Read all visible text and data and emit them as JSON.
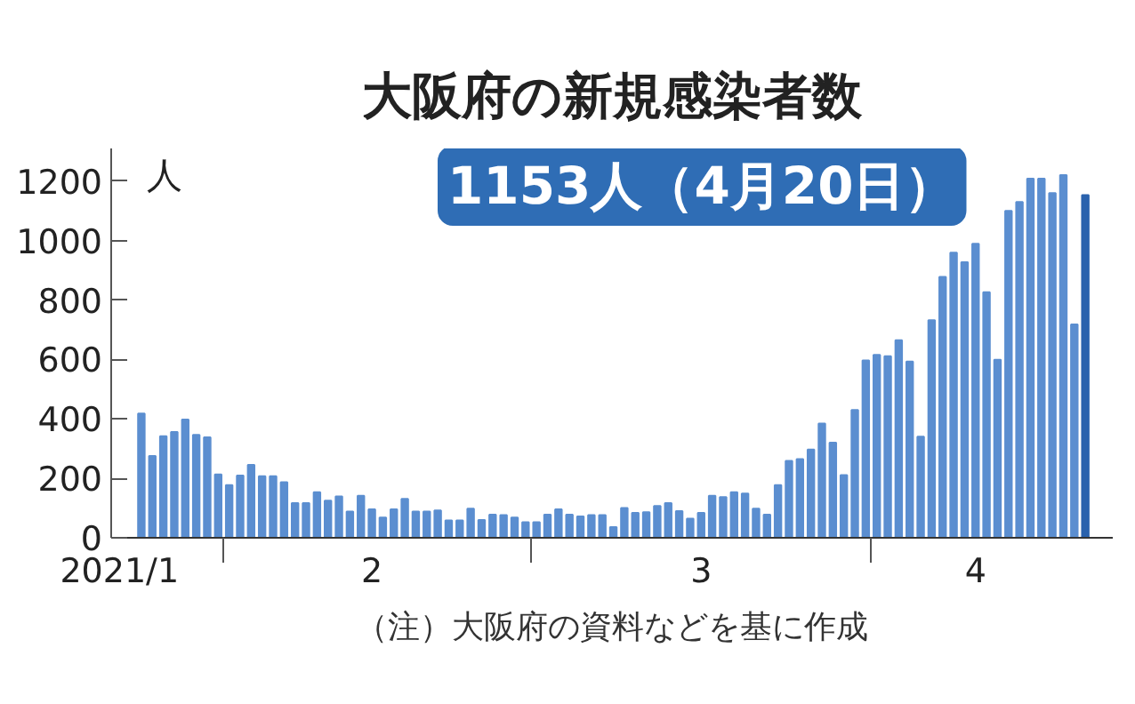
{
  "chart_data": {
    "type": "bar",
    "title": "大阪府の新規感染者数",
    "ylabel": "人",
    "annotations": [
      "1153人（4月20日）",
      "（注）大阪府の資料などを基に作成"
    ],
    "x": [
      "2021-01-24",
      "2021-01-25",
      "2021-01-26",
      "2021-01-27",
      "2021-01-28",
      "2021-01-29",
      "2021-01-30",
      "2021-01-31",
      "2021-02-01",
      "2021-02-02",
      "2021-02-03",
      "2021-02-04",
      "2021-02-05",
      "2021-02-06",
      "2021-02-07",
      "2021-02-08",
      "2021-02-09",
      "2021-02-10",
      "2021-02-11",
      "2021-02-12",
      "2021-02-13",
      "2021-02-14",
      "2021-02-15",
      "2021-02-16",
      "2021-02-17",
      "2021-02-18",
      "2021-02-19",
      "2021-02-20",
      "2021-02-21",
      "2021-02-22",
      "2021-02-23",
      "2021-02-24",
      "2021-02-25",
      "2021-02-26",
      "2021-02-27",
      "2021-02-28",
      "2021-03-01",
      "2021-03-02",
      "2021-03-03",
      "2021-03-04",
      "2021-03-05",
      "2021-03-06",
      "2021-03-07",
      "2021-03-08",
      "2021-03-09",
      "2021-03-10",
      "2021-03-11",
      "2021-03-12",
      "2021-03-13",
      "2021-03-14",
      "2021-03-15",
      "2021-03-16",
      "2021-03-17",
      "2021-03-18",
      "2021-03-19",
      "2021-03-20",
      "2021-03-21",
      "2021-03-22",
      "2021-03-23",
      "2021-03-24",
      "2021-03-25",
      "2021-03-26",
      "2021-03-27",
      "2021-03-28",
      "2021-03-29",
      "2021-03-30",
      "2021-03-31",
      "2021-04-01",
      "2021-04-02",
      "2021-04-03",
      "2021-04-04",
      "2021-04-05",
      "2021-04-06",
      "2021-04-07",
      "2021-04-08",
      "2021-04-09",
      "2021-04-10",
      "2021-04-11",
      "2021-04-12",
      "2021-04-13",
      "2021-04-14",
      "2021-04-15",
      "2021-04-16",
      "2021-04-17",
      "2021-04-18",
      "2021-04-19",
      "2021-04-20"
    ],
    "values": [
      418,
      275,
      342,
      356,
      398,
      346,
      338,
      213,
      177,
      209,
      245,
      207,
      207,
      187,
      117,
      117,
      153,
      125,
      139,
      88,
      141,
      96,
      68,
      96,
      131,
      88,
      88,
      92,
      58,
      58,
      98,
      60,
      78,
      76,
      68,
      52,
      52,
      78,
      96,
      78,
      72,
      76,
      76,
      36,
      100,
      84,
      86,
      107,
      117,
      90,
      64,
      84,
      141,
      137,
      153,
      149,
      98,
      78,
      177,
      259,
      265,
      297,
      384,
      320,
      211,
      430,
      597,
      615,
      611,
      665,
      593,
      340,
      732,
      878,
      959,
      927,
      989,
      826,
      599,
      1100,
      1130,
      1208,
      1208,
      1160,
      1220,
      718,
      1153
    ],
    "colors": [
      "#5b8ed0",
      "#5b8ed0",
      "#5b8ed0",
      "#5b8ed0",
      "#5b8ed0",
      "#5b8ed0",
      "#5b8ed0",
      "#5b8ed0",
      "#5b8ed0",
      "#5b8ed0",
      "#5b8ed0",
      "#5b8ed0",
      "#5b8ed0",
      "#5b8ed0",
      "#5b8ed0",
      "#5b8ed0",
      "#5b8ed0",
      "#5b8ed0",
      "#5b8ed0",
      "#5b8ed0",
      "#5b8ed0",
      "#5b8ed0",
      "#5b8ed0",
      "#5b8ed0",
      "#5b8ed0",
      "#5b8ed0",
      "#5b8ed0",
      "#5b8ed0",
      "#5b8ed0",
      "#5b8ed0",
      "#5b8ed0",
      "#5b8ed0",
      "#5b8ed0",
      "#5b8ed0",
      "#5b8ed0",
      "#5b8ed0",
      "#5b8ed0",
      "#5b8ed0",
      "#5b8ed0",
      "#5b8ed0",
      "#5b8ed0",
      "#5b8ed0",
      "#5b8ed0",
      "#5b8ed0",
      "#5b8ed0",
      "#5b8ed0",
      "#5b8ed0",
      "#5b8ed0",
      "#5b8ed0",
      "#5b8ed0",
      "#5b8ed0",
      "#5b8ed0",
      "#5b8ed0",
      "#5b8ed0",
      "#5b8ed0",
      "#5b8ed0",
      "#5b8ed0",
      "#5b8ed0",
      "#5b8ed0",
      "#5b8ed0",
      "#5b8ed0",
      "#5b8ed0",
      "#5b8ed0",
      "#5b8ed0",
      "#5b8ed0",
      "#5b8ed0",
      "#5b8ed0",
      "#5b8ed0",
      "#5b8ed0",
      "#5b8ed0",
      "#5b8ed0",
      "#5b8ed0",
      "#5b8ed0",
      "#5b8ed0",
      "#5b8ed0",
      "#5b8ed0",
      "#5b8ed0",
      "#5b8ed0",
      "#5b8ed0",
      "#5b8ed0",
      "#5b8ed0",
      "#5b8ed0",
      "#5b8ed0",
      "#5b8ed0",
      "#5b8ed0",
      "#5b8ed0",
      "#2a62ad"
    ],
    "xlim": [
      "2021-01-21T06:00",
      "2021-04-22T12:00"
    ],
    "xticks": [
      {
        "value": "2021-01-22",
        "label": "2021/1"
      },
      {
        "value": "2021-02-14",
        "label": "2"
      },
      {
        "value": "2021-03-16",
        "label": "3"
      },
      {
        "value": "2021-04-10",
        "label": "4"
      },
      {
        "value": "2021-01-31T12:00",
        "label": null
      },
      {
        "value": "2021-02-28T12:00",
        "label": null
      },
      {
        "value": "2021-03-31T12:00",
        "label": null
      }
    ],
    "ylim": [
      0,
      1310
    ],
    "yticks": [
      0,
      200,
      400,
      600,
      800,
      1000,
      1200
    ]
  }
}
